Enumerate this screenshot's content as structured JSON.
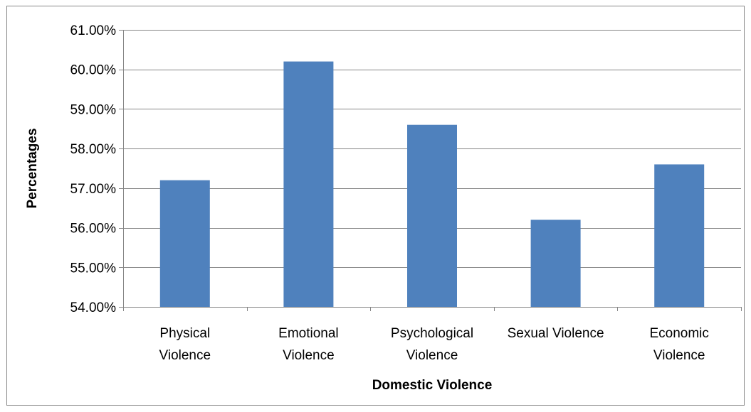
{
  "chart_data": {
    "type": "bar",
    "categories": [
      [
        "Physical",
        "Violence"
      ],
      [
        "Emotional",
        "Violence"
      ],
      [
        "Psychological",
        "Violence"
      ],
      [
        "Sexual Violence"
      ],
      [
        "Economic",
        "Violence"
      ]
    ],
    "values": [
      57.2,
      60.2,
      58.6,
      56.2,
      57.6
    ],
    "ylim": [
      54,
      61
    ],
    "yticks": [
      54,
      55,
      56,
      57,
      58,
      59,
      60,
      61
    ],
    "ytick_labels": [
      "54.00%",
      "55.00%",
      "56.00%",
      "57.00%",
      "58.00%",
      "59.00%",
      "60.00%",
      "61.00%"
    ],
    "xlabel": "Domestic Violence",
    "ylabel": "Percentages",
    "grid": true,
    "legend": "none",
    "colors": {
      "bar": "#4f81bd",
      "grid": "#868686",
      "axis": "#868686",
      "border": "#888888"
    }
  }
}
